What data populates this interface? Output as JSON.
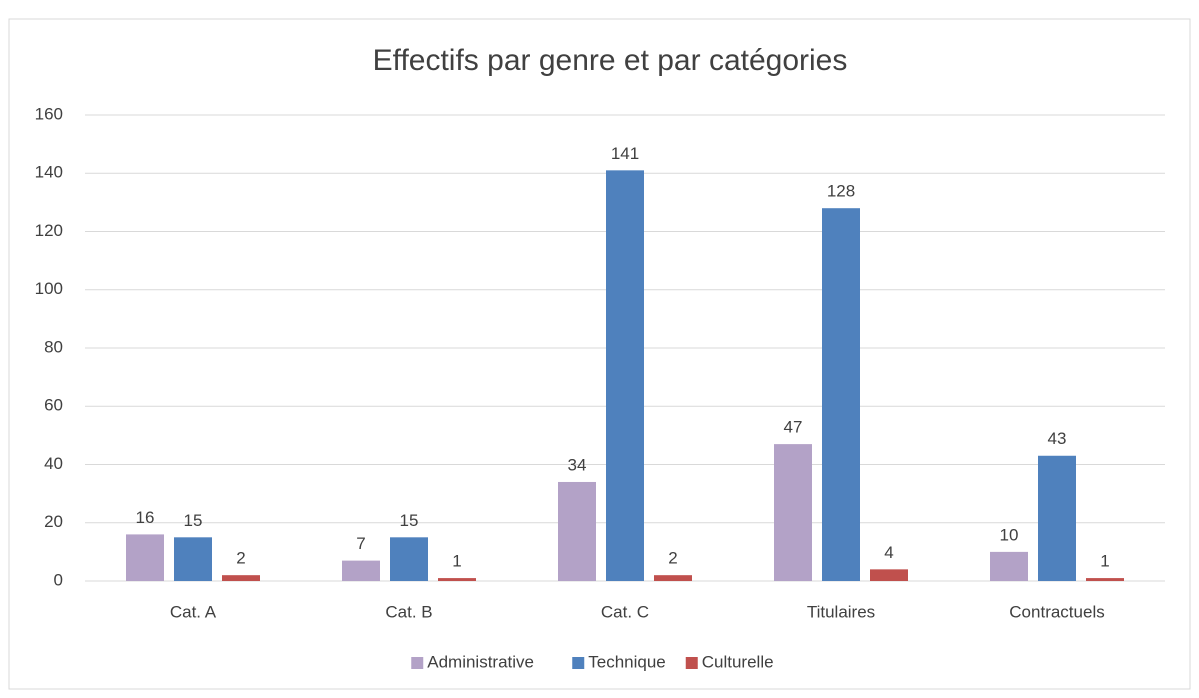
{
  "chart_data": {
    "type": "bar",
    "title": "Effectifs par genre et par catégories",
    "categories": [
      "Cat. A",
      "Cat. B",
      "Cat. C",
      "Titulaires",
      "Contractuels"
    ],
    "series": [
      {
        "name": "Administrative",
        "color": "#b3a2c7",
        "values": [
          16,
          7,
          34,
          47,
          10
        ]
      },
      {
        "name": "Technique",
        "color": "#4f81bd",
        "values": [
          15,
          15,
          141,
          128,
          43
        ]
      },
      {
        "name": "Culturelle",
        "color": "#c0504d",
        "values": [
          2,
          1,
          2,
          4,
          1
        ]
      }
    ],
    "ylim": [
      0,
      160
    ],
    "yticks": [
      0,
      20,
      40,
      60,
      80,
      100,
      120,
      140,
      160
    ],
    "grid": true,
    "legend": "bottom"
  }
}
